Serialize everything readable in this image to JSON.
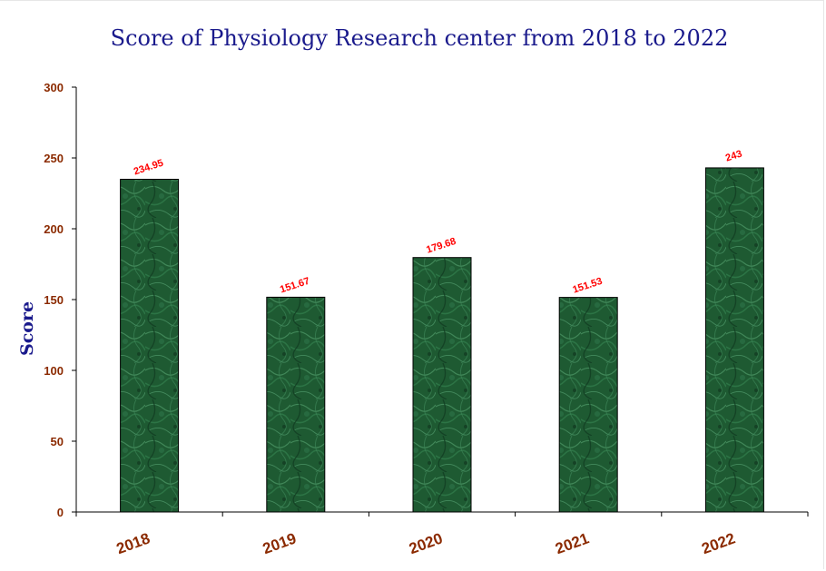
{
  "chart_data": {
    "type": "bar",
    "title": "Score of Physiology Research center from 2018 to 2022",
    "xlabel": "",
    "ylabel": "Score",
    "categories": [
      "2018",
      "2019",
      "2020",
      "2021",
      "2022"
    ],
    "values": [
      234.95,
      151.67,
      179.68,
      151.53,
      243
    ],
    "data_labels": [
      "234.95",
      "151.67",
      "179.68",
      "151.53",
      "243"
    ],
    "ylim": [
      0,
      300
    ],
    "yticks": [
      0,
      50,
      100,
      150,
      200,
      250,
      300
    ],
    "grid": false,
    "legend": "none",
    "colors": {
      "bar_fill": "#1e5a32",
      "bar_highlight": "#3f8a5a",
      "data_label": "#ff0000",
      "tick_label": "#8b2a00",
      "title": "#1a1a8c"
    }
  }
}
